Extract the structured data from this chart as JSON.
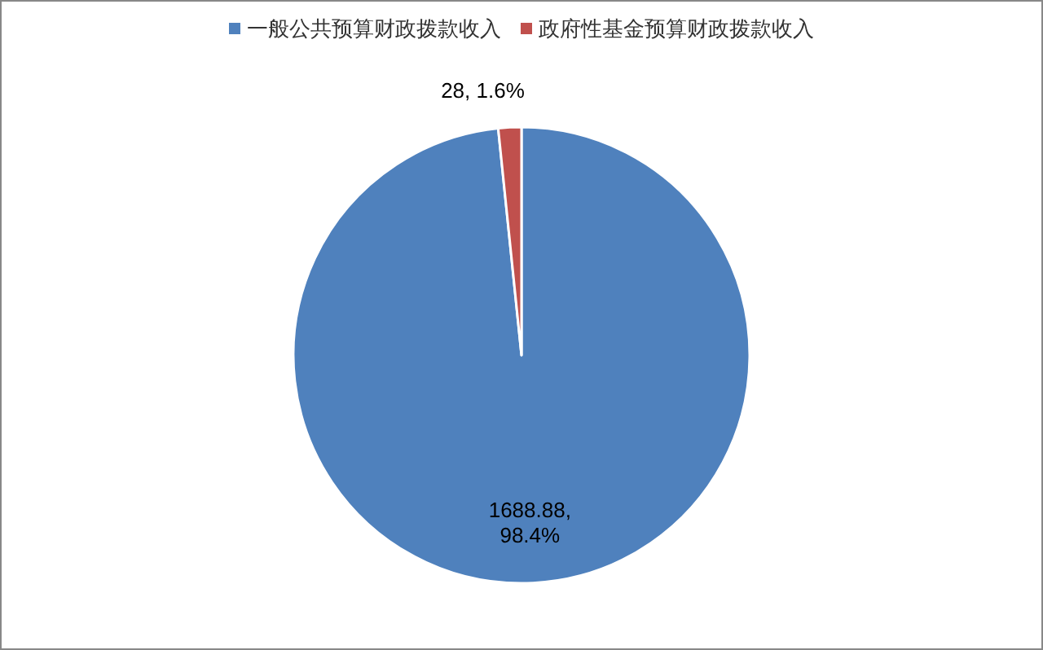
{
  "chart_data": {
    "type": "pie",
    "categories": [
      "一般公共预算财政拨款收入",
      "政府性基金预算财政拨款收入"
    ],
    "values": [
      1688.88,
      28
    ],
    "colors": [
      "#4f81bd",
      "#c0504d"
    ],
    "value_labels": [
      "1688.88, 98.4%",
      "28, 1.6%"
    ],
    "legend": "top"
  }
}
